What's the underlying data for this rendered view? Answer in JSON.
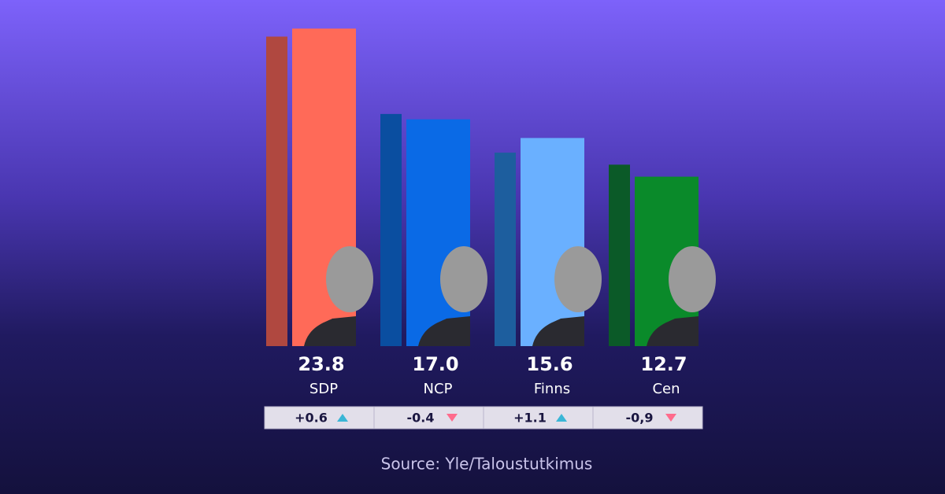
{
  "chart_data": {
    "type": "bar",
    "categories": [
      "SDP",
      "NCP",
      "Finns",
      "Cen"
    ],
    "series": [
      {
        "colors": [
          "#b04840",
          "#0a4ea0",
          "#1d5e9e",
          "#0b5a28"
        ],
        "values": [
          23.2,
          17.4,
          14.5,
          13.6
        ]
      },
      {
        "colors": [
          "#ff6a58",
          "#0a6ae6",
          "#6ab0ff",
          "#0a8a2a"
        ],
        "values": [
          23.8,
          17.0,
          15.6,
          12.7
        ],
        "value_labels": [
          "23.8",
          "17.0",
          "15.6",
          "12.7"
        ]
      }
    ],
    "changes": [
      0.6,
      -0.4,
      1.1,
      -0.9
    ],
    "change_labels": [
      "+0.6",
      "-0.4",
      "+1.1",
      "-0,9"
    ],
    "ylim": [
      0,
      25
    ],
    "source": "Source: Yle/Taloustutkimus"
  }
}
